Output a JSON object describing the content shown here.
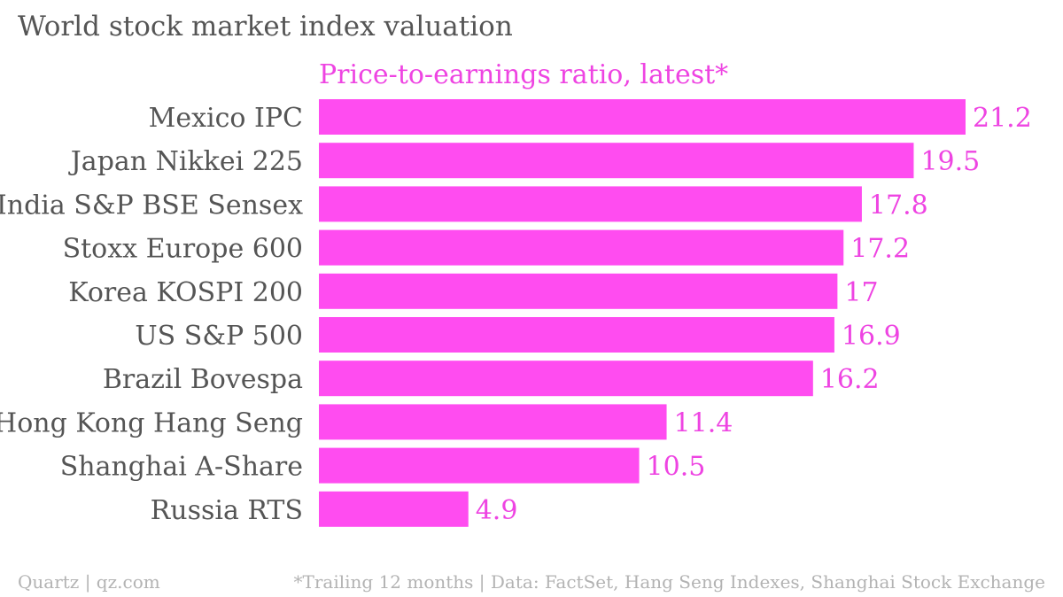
{
  "title": "World stock market index valuation",
  "footer": {
    "left": "Quartz | qz.com",
    "right": "*Trailing 12 months | Data: FactSet, Hang Seng Indexes, Shanghai Stock Exchange"
  },
  "colors": {
    "bar": "#ff4cf0",
    "label": "#555555",
    "value": "#ee44e2",
    "muted": "#b3b3b3"
  },
  "chart_data": {
    "type": "bar",
    "orientation": "horizontal",
    "series_title": "Price-to-earnings ratio, latest*",
    "categories": [
      "Mexico IPC",
      "Japan Nikkei 225",
      "India S&P BSE Sensex",
      "Stoxx Europe 600",
      "Korea KOSPI 200",
      "US S&P 500",
      "Brazil Bovespa",
      "Hong Kong Hang Seng",
      "Shanghai A-Share",
      "Russia RTS"
    ],
    "values": [
      21.2,
      19.5,
      17.8,
      17.2,
      17,
      16.9,
      16.2,
      11.4,
      10.5,
      4.9
    ],
    "value_labels": [
      "21.2",
      "19.5",
      "17.8",
      "17.2",
      "17",
      "16.9",
      "16.2",
      "11.4",
      "10.5",
      "4.9"
    ],
    "xlim": [
      0,
      21.2
    ],
    "grid": false,
    "legend": false
  }
}
